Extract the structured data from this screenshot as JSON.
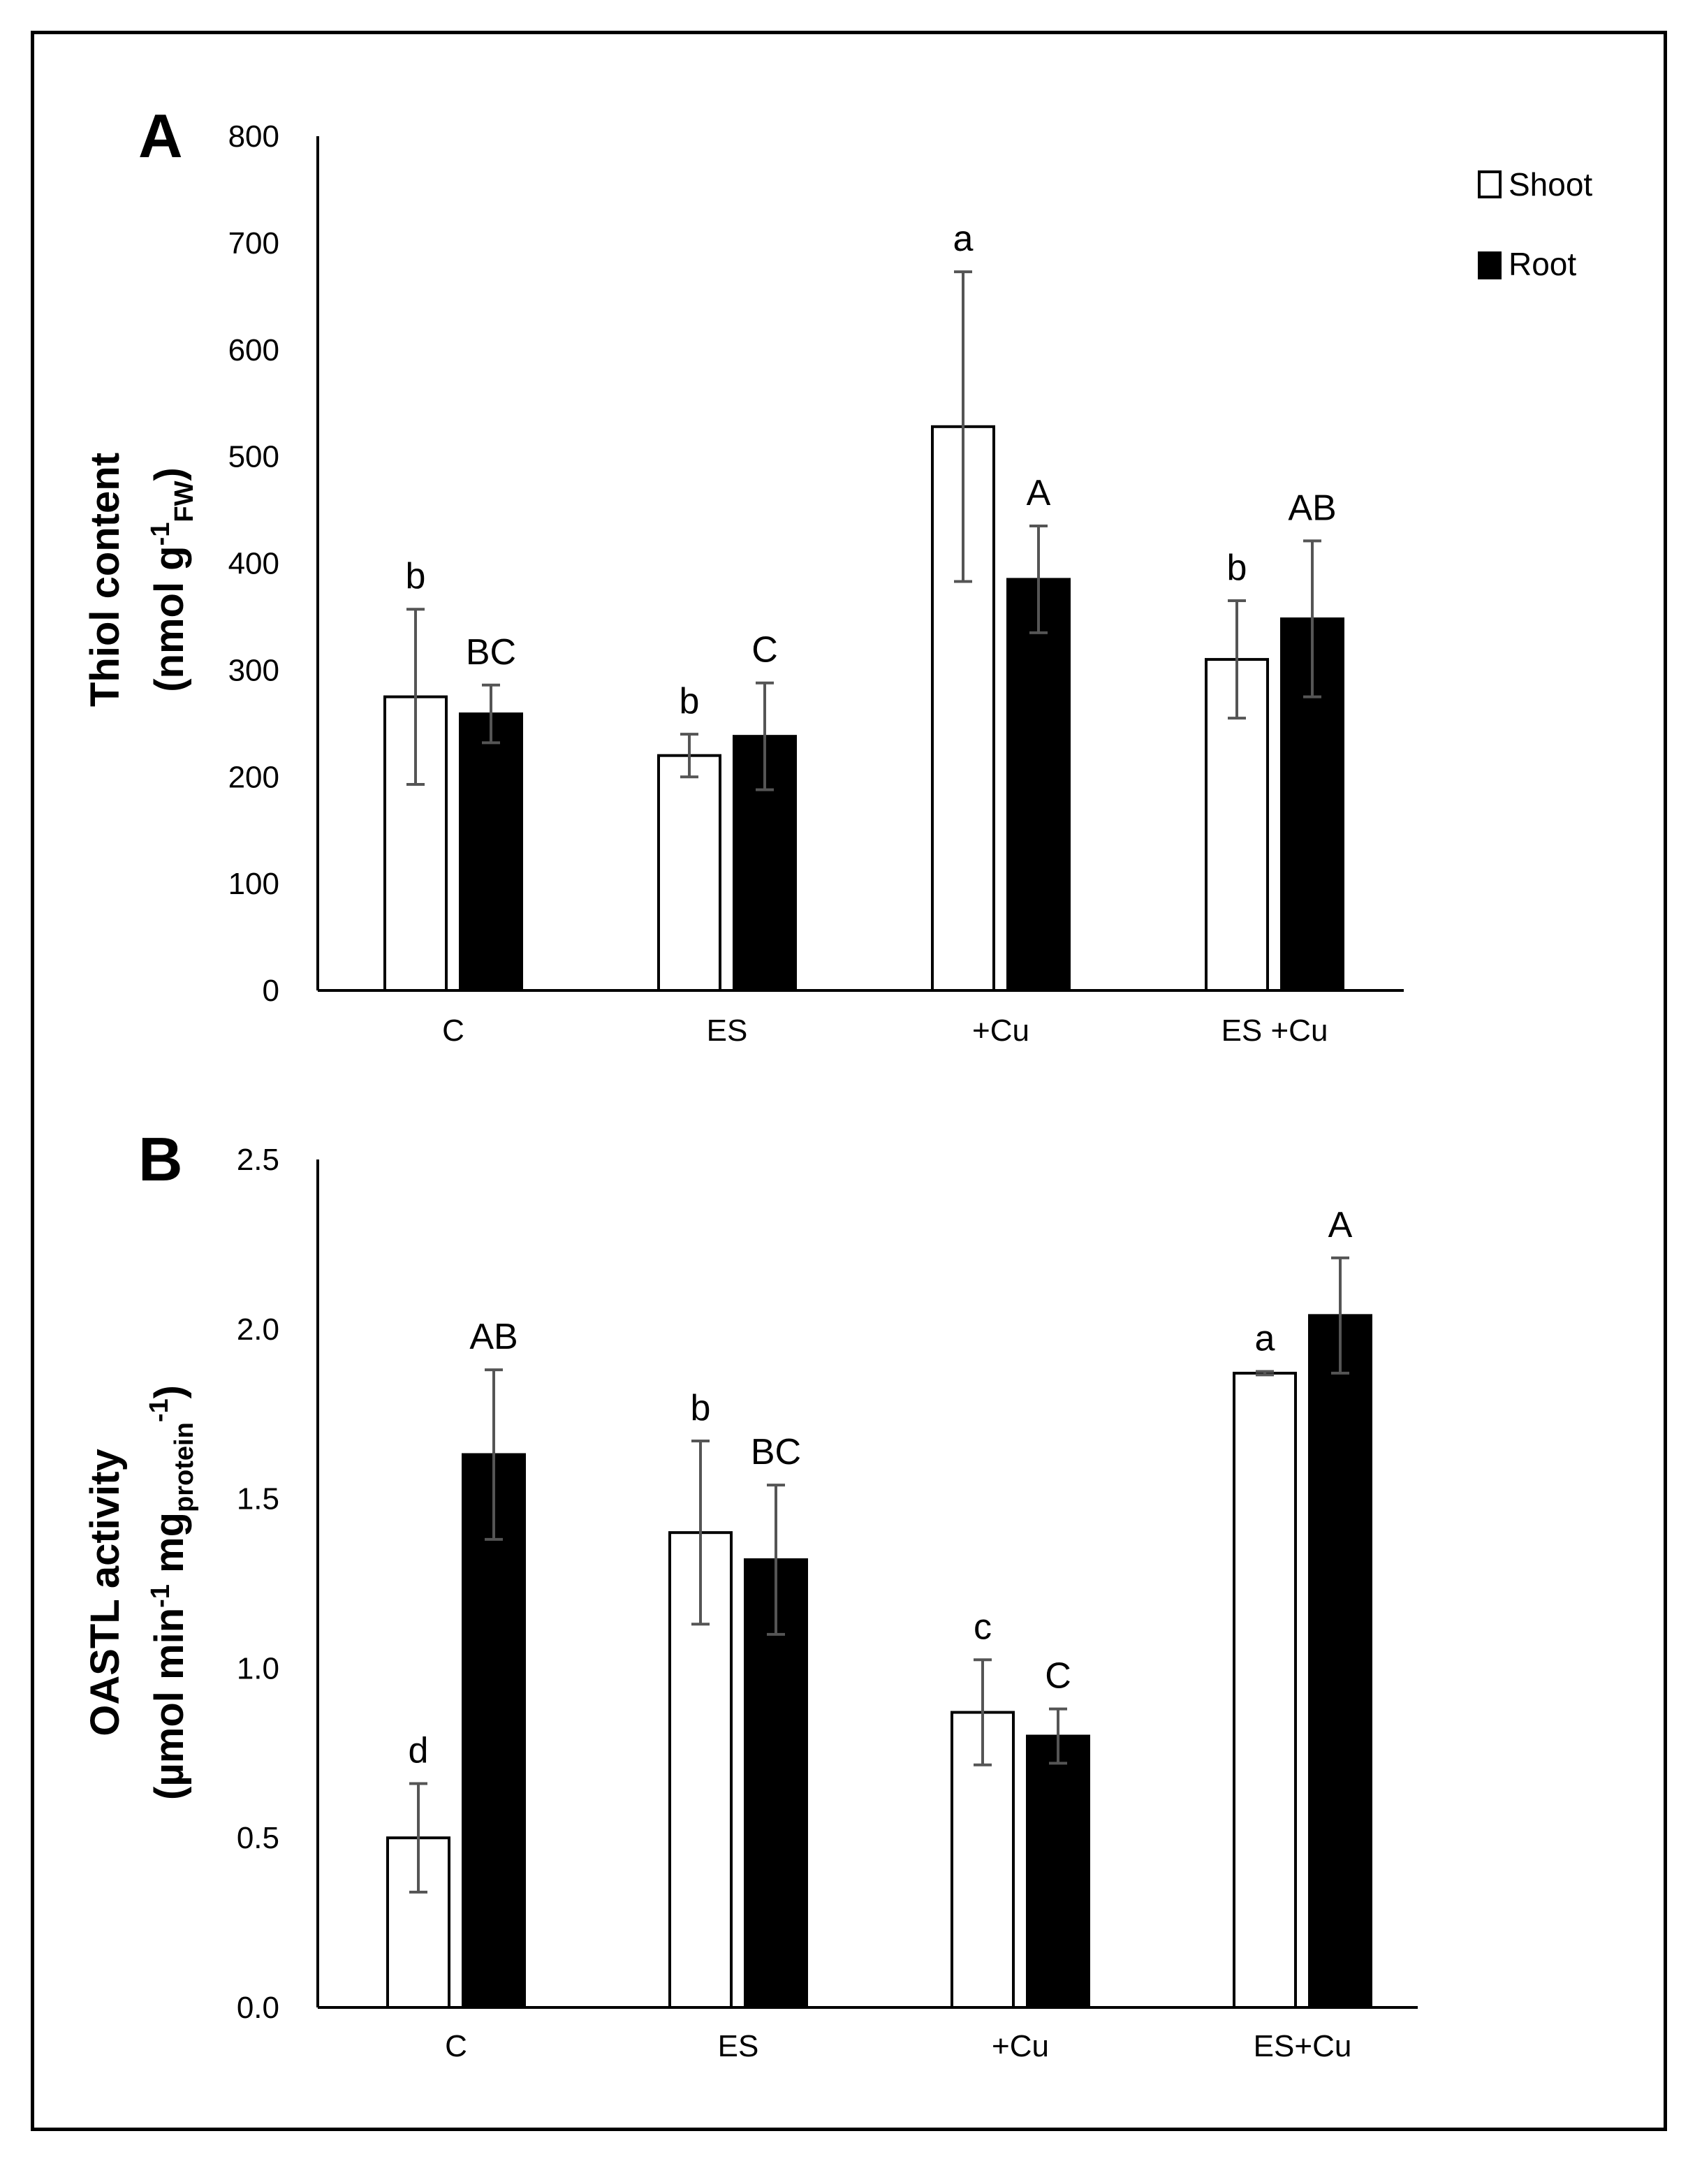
{
  "chart_data": [
    {
      "type": "bar",
      "panel": "A",
      "ylabel": {
        "line1": "Thiol content",
        "line2_pre": "(nmol g",
        "line2_sup": "-1",
        "line2_sub": "FW",
        "line2_post": ")"
      },
      "ylim": [
        0,
        800
      ],
      "yticks": [
        "0",
        "100",
        "200",
        "300",
        "400",
        "500",
        "600",
        "700",
        "800"
      ],
      "ytick_values": [
        0,
        100,
        200,
        300,
        400,
        500,
        600,
        700,
        800
      ],
      "categories": [
        "C",
        "ES",
        "+Cu",
        "ES +Cu"
      ],
      "series": [
        {
          "name": "Shoot",
          "color": "#ffffff",
          "values": [
            275,
            220,
            528,
            310
          ],
          "errors": [
            82,
            20,
            145,
            55
          ],
          "letters": [
            "b",
            "b",
            "a",
            "b"
          ]
        },
        {
          "name": "Root",
          "color": "#000000",
          "values": [
            259,
            238,
            385,
            348
          ],
          "errors": [
            27,
            50,
            50,
            73
          ],
          "letters": [
            "BC",
            "C",
            "A",
            "AB"
          ]
        }
      ],
      "legend": [
        {
          "label": "Shoot",
          "color": "#ffffff"
        },
        {
          "label": "Root",
          "color": "#000000"
        }
      ],
      "legend_position": "top-right"
    },
    {
      "type": "bar",
      "panel": "B",
      "ylabel": {
        "line1": "OASTL activity",
        "line2_pre": "(µmol min",
        "line2_sup1": "-1",
        "line2_mid": " mg",
        "line2_sub": "protein",
        "line2_sup2": "-1",
        "line2_post": ")"
      },
      "ylim": [
        0,
        2.5
      ],
      "yticks": [
        "0.0",
        "0.5",
        "1.0",
        "1.5",
        "2.0",
        "2.5"
      ],
      "ytick_values": [
        0,
        0.5,
        1.0,
        1.5,
        2.0,
        2.5
      ],
      "categories": [
        "C",
        "ES",
        "+Cu",
        "ES+Cu"
      ],
      "series": [
        {
          "name": "Shoot",
          "color": "#ffffff",
          "values": [
            0.5,
            1.4,
            0.87,
            1.87
          ],
          "errors": [
            0.16,
            0.27,
            0.155,
            0.005
          ],
          "letters": [
            "d",
            "b",
            "c",
            "a"
          ]
        },
        {
          "name": "Root",
          "color": "#000000",
          "values": [
            1.63,
            1.32,
            0.8,
            2.04
          ],
          "errors": [
            0.25,
            0.22,
            0.08,
            0.17
          ],
          "letters": [
            "AB",
            "BC",
            "C",
            "A"
          ]
        }
      ]
    }
  ]
}
